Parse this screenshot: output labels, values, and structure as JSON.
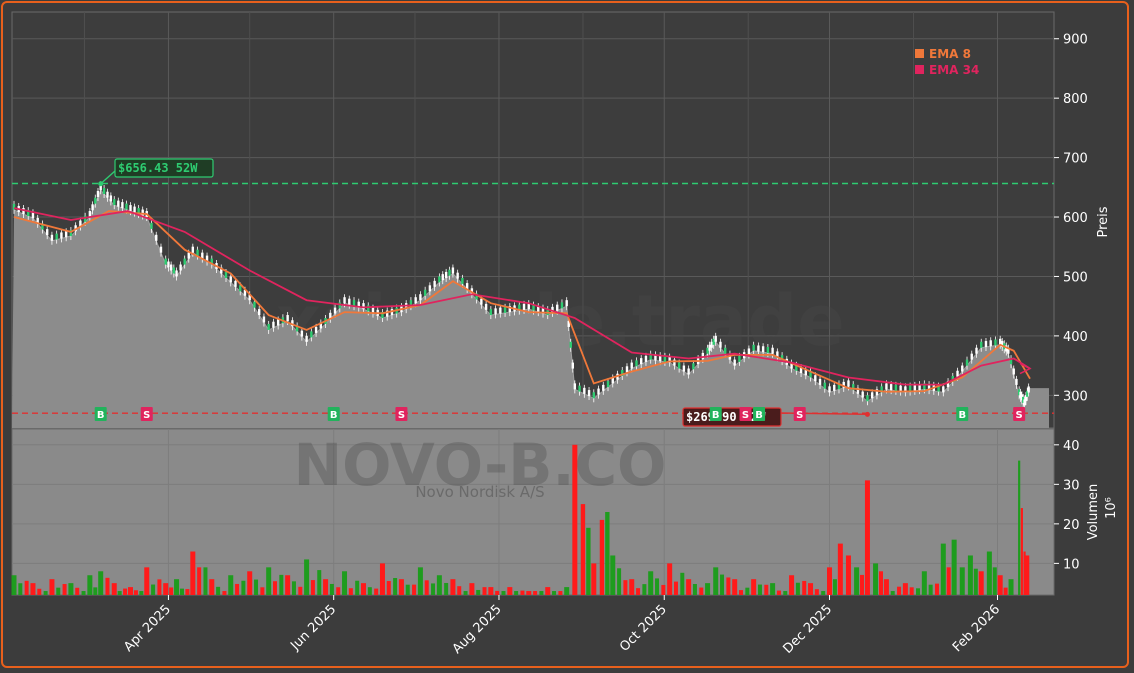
{
  "watermark": {
    "brand": "forexsignale.trade",
    "ticker": "NOVO-B.CO",
    "company": "Novo Nordisk A/S"
  },
  "chart_data": [
    {
      "type": "line",
      "subtype": "candlestick-with-area",
      "ylabel": "Preis",
      "ylim": [
        245,
        945
      ],
      "yticks": [
        300,
        400,
        500,
        600,
        700,
        800,
        900
      ],
      "grid": true,
      "legend_position": "top-right",
      "x_range": [
        "2025-02-03",
        "2026-02-13"
      ],
      "x_ticks": [
        {
          "date": "2025-04-01",
          "label": "Apr 2025"
        },
        {
          "date": "2025-06-01",
          "label": "Jun 2025"
        },
        {
          "date": "2025-08-01",
          "label": "Aug 2025"
        },
        {
          "date": "2025-10-01",
          "label": "Oct 2025"
        },
        {
          "date": "2025-12-01",
          "label": "Dec 2025"
        },
        {
          "date": "2026-02-01",
          "label": "Feb 2026"
        }
      ],
      "close": [
        [
          "2025-02-03",
          612
        ],
        [
          "2025-02-10",
          598
        ],
        [
          "2025-02-17",
          560
        ],
        [
          "2025-02-24",
          568
        ],
        [
          "2025-03-03",
          600
        ],
        [
          "2025-03-07",
          645
        ],
        [
          "2025-03-12",
          620
        ],
        [
          "2025-03-18",
          610
        ],
        [
          "2025-03-24",
          600
        ],
        [
          "2025-03-31",
          520
        ],
        [
          "2025-04-04",
          500
        ],
        [
          "2025-04-10",
          540
        ],
        [
          "2025-04-17",
          520
        ],
        [
          "2025-04-24",
          490
        ],
        [
          "2025-05-01",
          460
        ],
        [
          "2025-05-08",
          410
        ],
        [
          "2025-05-15",
          425
        ],
        [
          "2025-05-22",
          390
        ],
        [
          "2025-05-29",
          420
        ],
        [
          "2025-06-05",
          455
        ],
        [
          "2025-06-12",
          445
        ],
        [
          "2025-06-19",
          430
        ],
        [
          "2025-06-26",
          440
        ],
        [
          "2025-07-03",
          460
        ],
        [
          "2025-07-10",
          490
        ],
        [
          "2025-07-15",
          505
        ],
        [
          "2025-07-22",
          470
        ],
        [
          "2025-07-29",
          435
        ],
        [
          "2025-08-05",
          440
        ],
        [
          "2025-08-12",
          445
        ],
        [
          "2025-08-19",
          435
        ],
        [
          "2025-08-26",
          450
        ],
        [
          "2025-08-29",
          310
        ],
        [
          "2025-09-05",
          295
        ],
        [
          "2025-09-12",
          320
        ],
        [
          "2025-09-19",
          345
        ],
        [
          "2025-09-26",
          360
        ],
        [
          "2025-10-03",
          355
        ],
        [
          "2025-10-10",
          335
        ],
        [
          "2025-10-17",
          370
        ],
        [
          "2025-10-20",
          390
        ],
        [
          "2025-10-27",
          350
        ],
        [
          "2025-11-03",
          375
        ],
        [
          "2025-11-10",
          370
        ],
        [
          "2025-11-17",
          345
        ],
        [
          "2025-11-24",
          330
        ],
        [
          "2025-12-01",
          305
        ],
        [
          "2025-12-08",
          315
        ],
        [
          "2025-12-15",
          290
        ],
        [
          "2025-12-22",
          310
        ],
        [
          "2025-12-29",
          305
        ],
        [
          "2026-01-05",
          310
        ],
        [
          "2026-01-12",
          305
        ],
        [
          "2026-01-19",
          340
        ],
        [
          "2026-01-26",
          380
        ],
        [
          "2026-02-02",
          385
        ],
        [
          "2026-02-05",
          370
        ],
        [
          "2026-02-09",
          300
        ],
        [
          "2026-02-11",
          283
        ],
        [
          "2026-02-13",
          312
        ]
      ],
      "ema8": [
        [
          "2025-02-03",
          600
        ],
        [
          "2025-02-24",
          575
        ],
        [
          "2025-03-10",
          610
        ],
        [
          "2025-03-24",
          605
        ],
        [
          "2025-04-07",
          545
        ],
        [
          "2025-04-24",
          505
        ],
        [
          "2025-05-08",
          435
        ],
        [
          "2025-05-22",
          410
        ],
        [
          "2025-06-05",
          440
        ],
        [
          "2025-06-19",
          438
        ],
        [
          "2025-07-03",
          452
        ],
        [
          "2025-07-15",
          492
        ],
        [
          "2025-07-29",
          455
        ],
        [
          "2025-08-12",
          440
        ],
        [
          "2025-08-26",
          438
        ],
        [
          "2025-09-05",
          320
        ],
        [
          "2025-09-19",
          340
        ],
        [
          "2025-10-03",
          357
        ],
        [
          "2025-10-17",
          358
        ],
        [
          "2025-10-27",
          368
        ],
        [
          "2025-11-10",
          368
        ],
        [
          "2025-11-24",
          340
        ],
        [
          "2025-12-08",
          312
        ],
        [
          "2025-12-22",
          306
        ],
        [
          "2026-01-05",
          307
        ],
        [
          "2026-01-19",
          330
        ],
        [
          "2026-02-02",
          385
        ],
        [
          "2026-02-07",
          375
        ],
        [
          "2026-02-13",
          328
        ]
      ],
      "ema34": [
        [
          "2025-02-03",
          615
        ],
        [
          "2025-02-24",
          595
        ],
        [
          "2025-03-17",
          610
        ],
        [
          "2025-04-07",
          575
        ],
        [
          "2025-05-01",
          510
        ],
        [
          "2025-05-22",
          460
        ],
        [
          "2025-06-12",
          448
        ],
        [
          "2025-07-03",
          452
        ],
        [
          "2025-07-22",
          470
        ],
        [
          "2025-08-12",
          455
        ],
        [
          "2025-08-29",
          430
        ],
        [
          "2025-09-19",
          372
        ],
        [
          "2025-10-10",
          362
        ],
        [
          "2025-10-27",
          370
        ],
        [
          "2025-11-17",
          355
        ],
        [
          "2025-12-08",
          330
        ],
        [
          "2025-12-29",
          318
        ],
        [
          "2026-01-12",
          318
        ],
        [
          "2026-01-26",
          350
        ],
        [
          "2026-02-07",
          362
        ],
        [
          "2026-02-13",
          345
        ]
      ],
      "hlines": [
        {
          "value": 656.43,
          "label": "$656.43 52W",
          "type": "high",
          "date": "2025-03-07"
        },
        {
          "value": 269.9,
          "label": "$269.90 52W",
          "type": "low",
          "date": "2025-12-15"
        }
      ],
      "signals": [
        {
          "date": "2025-03-07",
          "label": "B"
        },
        {
          "date": "2025-03-24",
          "label": "S"
        },
        {
          "date": "2025-06-01",
          "label": "B"
        },
        {
          "date": "2025-06-26",
          "label": "S"
        },
        {
          "date": "2025-10-20",
          "label": "B"
        },
        {
          "date": "2025-10-31",
          "label": "S"
        },
        {
          "date": "2025-11-05",
          "label": "B"
        },
        {
          "date": "2025-11-20",
          "label": "S"
        },
        {
          "date": "2026-01-19",
          "label": "B"
        },
        {
          "date": "2026-02-09",
          "label": "S"
        }
      ],
      "series": [
        {
          "name": "EMA 8",
          "color": "#f0783a"
        },
        {
          "name": "EMA 34",
          "color": "#e0245e"
        }
      ]
    },
    {
      "type": "bar",
      "ylabel": "Volumen",
      "yunit": "10⁶",
      "ylim": [
        2,
        44
      ],
      "yticks": [
        10,
        20,
        30,
        40
      ],
      "volume": [
        [
          "2025-02-03",
          7,
          "g"
        ],
        [
          "2025-02-10",
          5,
          "r"
        ],
        [
          "2025-02-17",
          6,
          "r"
        ],
        [
          "2025-02-24",
          5,
          "g"
        ],
        [
          "2025-03-03",
          7,
          "g"
        ],
        [
          "2025-03-07",
          8,
          "g"
        ],
        [
          "2025-03-12",
          5,
          "r"
        ],
        [
          "2025-03-18",
          4,
          "r"
        ],
        [
          "2025-03-24",
          9,
          "r"
        ],
        [
          "2025-03-31",
          5,
          "r"
        ],
        [
          "2025-04-04",
          6,
          "g"
        ],
        [
          "2025-04-10",
          13,
          "r"
        ],
        [
          "2025-04-17",
          6,
          "r"
        ],
        [
          "2025-04-24",
          7,
          "g"
        ],
        [
          "2025-05-01",
          8,
          "r"
        ],
        [
          "2025-05-08",
          9,
          "g"
        ],
        [
          "2025-05-15",
          7,
          "r"
        ],
        [
          "2025-05-22",
          11,
          "g"
        ],
        [
          "2025-05-29",
          6,
          "r"
        ],
        [
          "2025-06-05",
          8,
          "g"
        ],
        [
          "2025-06-12",
          5,
          "r"
        ],
        [
          "2025-06-19",
          10,
          "r"
        ],
        [
          "2025-06-26",
          6,
          "r"
        ],
        [
          "2025-07-03",
          9,
          "g"
        ],
        [
          "2025-07-10",
          7,
          "g"
        ],
        [
          "2025-07-15",
          6,
          "r"
        ],
        [
          "2025-07-22",
          5,
          "r"
        ],
        [
          "2025-07-29",
          4,
          "r"
        ],
        [
          "2025-08-05",
          4,
          "r"
        ],
        [
          "2025-08-12",
          3,
          "r"
        ],
        [
          "2025-08-19",
          4,
          "r"
        ],
        [
          "2025-08-26",
          4,
          "g"
        ],
        [
          "2025-08-29",
          40,
          "r"
        ],
        [
          "2025-09-01",
          25,
          "r"
        ],
        [
          "2025-09-03",
          19,
          "g"
        ],
        [
          "2025-09-05",
          10,
          "r"
        ],
        [
          "2025-09-08",
          21,
          "r"
        ],
        [
          "2025-09-10",
          23,
          "g"
        ],
        [
          "2025-09-12",
          12,
          "g"
        ],
        [
          "2025-09-19",
          6,
          "r"
        ],
        [
          "2025-09-26",
          8,
          "g"
        ],
        [
          "2025-10-03",
          10,
          "r"
        ],
        [
          "2025-10-10",
          6,
          "r"
        ],
        [
          "2025-10-17",
          5,
          "g"
        ],
        [
          "2025-10-20",
          9,
          "g"
        ],
        [
          "2025-10-27",
          6,
          "r"
        ],
        [
          "2025-11-03",
          6,
          "r"
        ],
        [
          "2025-11-10",
          5,
          "g"
        ],
        [
          "2025-11-17",
          7,
          "r"
        ],
        [
          "2025-11-24",
          5,
          "r"
        ],
        [
          "2025-12-01",
          9,
          "r"
        ],
        [
          "2025-12-05",
          15,
          "r"
        ],
        [
          "2025-12-08",
          12,
          "r"
        ],
        [
          "2025-12-11",
          9,
          "g"
        ],
        [
          "2025-12-15",
          31,
          "r"
        ],
        [
          "2025-12-18",
          10,
          "g"
        ],
        [
          "2025-12-22",
          6,
          "r"
        ],
        [
          "2025-12-29",
          5,
          "r"
        ],
        [
          "2026-01-05",
          8,
          "g"
        ],
        [
          "2026-01-12",
          15,
          "g"
        ],
        [
          "2026-01-16",
          16,
          "g"
        ],
        [
          "2026-01-19",
          9,
          "g"
        ],
        [
          "2026-01-22",
          12,
          "g"
        ],
        [
          "2026-01-26",
          8,
          "r"
        ],
        [
          "2026-01-29",
          13,
          "g"
        ],
        [
          "2026-02-02",
          7,
          "r"
        ],
        [
          "2026-02-06",
          6,
          "g"
        ],
        [
          "2026-02-09",
          36,
          "g"
        ],
        [
          "2026-02-10",
          24,
          "r"
        ],
        [
          "2026-02-11",
          13,
          "r"
        ],
        [
          "2026-02-12",
          12,
          "r"
        ]
      ]
    }
  ]
}
